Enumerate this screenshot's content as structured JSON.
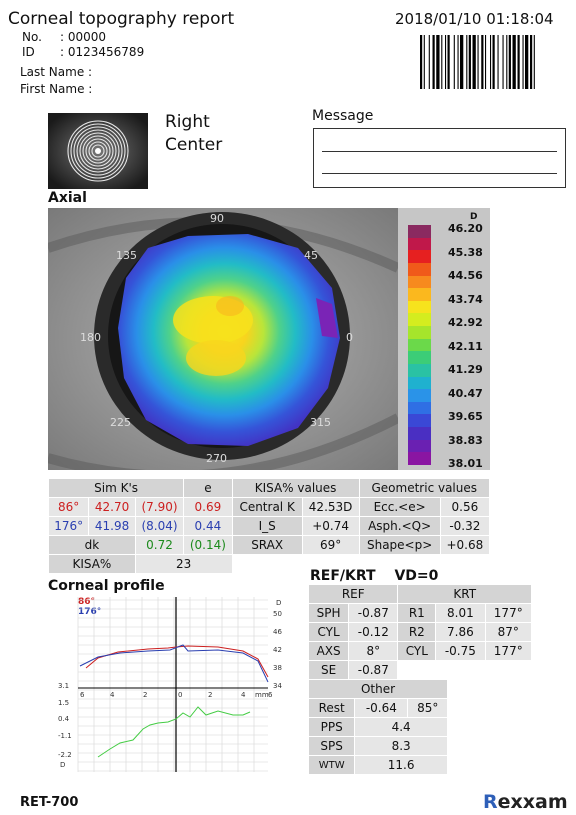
{
  "header": {
    "title": "Corneal topography report",
    "datetime": "2018/01/10 01:18:04"
  },
  "patient": {
    "no_label": "No.",
    "no_value": ": 00000",
    "id_label": "ID",
    "id_value": ": 0123456789",
    "last_name_label": "Last Name :",
    "first_name_label": "First Name :"
  },
  "eye": {
    "side": "Right",
    "position": "Center"
  },
  "message": {
    "label": "Message"
  },
  "axial": {
    "title": "Axial",
    "angles": [
      "90",
      "45",
      "135",
      "180",
      "0",
      "225",
      "315",
      "270"
    ],
    "scale_unit": "D",
    "scale_values": [
      "46.20",
      "45.38",
      "44.56",
      "43.74",
      "42.92",
      "42.11",
      "41.29",
      "40.47",
      "39.65",
      "38.83",
      "38.01"
    ],
    "scale_colors": [
      "#8a2a60",
      "#c0184a",
      "#e62020",
      "#f05a1a",
      "#f78a1e",
      "#fbb81e",
      "#f6e31d",
      "#d4ed1f",
      "#a6e52b",
      "#6bd94a",
      "#3ccd77",
      "#2ac2a4",
      "#1fb1cf",
      "#2a93e8",
      "#2f6fe4",
      "#3a48d6",
      "#4a2fc2",
      "#6a20b2",
      "#8a15a2"
    ]
  },
  "simk": {
    "h_simk": "Sim K's",
    "h_e": "e",
    "h_kisa": "KISA% values",
    "h_geo": "Geometric values",
    "r1_axis": "86°",
    "r1_d": "42.70",
    "r1_mm": "(7.90)",
    "r1_e": "0.69",
    "r2_axis": "176°",
    "r2_d": "41.98",
    "r2_mm": "(8.04)",
    "r2_e": "0.44",
    "dk_label": "dk",
    "dk_d": "0.72",
    "dk_mm": "(0.14)",
    "kisa_label": "KISA%",
    "kisa_value": "23",
    "central_k_label": "Central K",
    "central_k": "42.53D",
    "is_label": "I_S",
    "is_value": "+0.74",
    "srax_label": "SRAX",
    "srax_value": "69°",
    "ecc_label": "Ecc.<e>",
    "ecc_value": "0.56",
    "asph_label": "Asph.<Q>",
    "asph_value": "-0.32",
    "shape_label": "Shape<p>",
    "shape_value": "+0.68"
  },
  "profile": {
    "title": "Corneal profile",
    "legend_red": "86°",
    "legend_blue": "176°",
    "right_unit": "D",
    "right_ticks": [
      "50",
      "46",
      "42",
      "38",
      "34"
    ],
    "x_ticks": [
      "6",
      "4",
      "2",
      "0",
      "2",
      "4",
      "mm",
      "6"
    ],
    "left_ticks": [
      "3.1",
      "1.5",
      "0.4",
      "-1.1",
      "-2.2"
    ],
    "left_unit": "D"
  },
  "refkrt": {
    "title": "REF/KRT",
    "vd": "VD=0",
    "ref_header": "REF",
    "krt_header": "KRT",
    "sph_label": "SPH",
    "sph": "-0.87",
    "cyl_label": "CYL",
    "cyl": "-0.12",
    "axs_label": "AXS",
    "axs": "8°",
    "se_label": "SE",
    "se": "-0.87",
    "r1_label": "R1",
    "r1": "8.01",
    "r1_axis": "177°",
    "r2_label": "R2",
    "r2": "7.86",
    "r2_axis": "87°",
    "kcyl_label": "CYL",
    "kcyl": "-0.75",
    "kcyl_axis": "177°",
    "other_header": "Other",
    "rest_label": "Rest",
    "rest": "-0.64",
    "rest_axis": "85°",
    "pps_label": "PPS",
    "pps": "4.4",
    "sps_label": "SPS",
    "sps": "8.3",
    "wtw_label": "WTW",
    "wtw": "11.6"
  },
  "footer": {
    "model": "RET-700",
    "brand_r": "R",
    "brand_rest": "exxam"
  }
}
